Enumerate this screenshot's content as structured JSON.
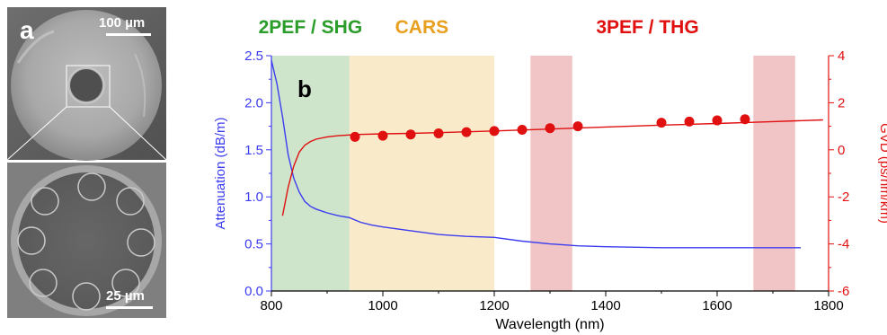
{
  "colors": {
    "attenuation": "#3c3cf0",
    "gvd": "#e01010",
    "green_band": "#bedcb9",
    "orange_band": "#f7e3b8",
    "red_band": "#e9a6a6",
    "green_label": "#2a9d2a",
    "orange_label": "#e8a020",
    "red_label": "#e01010"
  },
  "sem_panel": {
    "top_label": "a",
    "top_scalebar_label": "100 µm",
    "bottom_scalebar_label": "25 µm"
  },
  "chart_data": {
    "type": "line",
    "panel_label": "b",
    "xlabel": "Wavelength (nm)",
    "ylabel_left": "Attenuation (dB/m)",
    "ylabel_right": "GVD (ps/nm/km)",
    "xlim": [
      800,
      1800
    ],
    "ylim_left": [
      0.0,
      2.5
    ],
    "ylim_right": [
      -6,
      4
    ],
    "x_ticks": [
      800,
      1000,
      1200,
      1400,
      1600,
      1800
    ],
    "x_tick_labels": [
      "800",
      "1000",
      "1200",
      "1400",
      "1600",
      "1800"
    ],
    "y_left_ticks": [
      0.0,
      0.5,
      1.0,
      1.5,
      2.0,
      2.5
    ],
    "y_left_tick_labels": [
      "0.0",
      "0.5",
      "1.0",
      "1.5",
      "2.0",
      "2.5"
    ],
    "y_right_ticks": [
      -6,
      -4,
      -2,
      0,
      2,
      4
    ],
    "y_right_tick_labels": [
      "-6",
      "-4",
      "-2",
      "0",
      "2",
      "4"
    ],
    "bands": [
      {
        "label": "2PEF / SHG",
        "x_range": [
          800,
          940
        ],
        "color": "green"
      },
      {
        "label": "CARS",
        "x_range": [
          940,
          1200
        ],
        "color": "orange"
      },
      {
        "label": "3PEF / THG",
        "x_range": [
          1265,
          1340
        ],
        "color": "red"
      },
      {
        "label": "",
        "x_range": [
          1665,
          1740
        ],
        "color": "red"
      }
    ],
    "series": [
      {
        "axis": "left",
        "style": "line",
        "x": [
          800,
          810,
          820,
          830,
          840,
          850,
          860,
          870,
          880,
          890,
          900,
          920,
          940,
          960,
          980,
          1000,
          1050,
          1100,
          1150,
          1200,
          1250,
          1300,
          1350,
          1400,
          1500,
          1600,
          1700,
          1750
        ],
        "y": [
          2.45,
          2.2,
          1.85,
          1.45,
          1.2,
          1.05,
          0.95,
          0.9,
          0.87,
          0.85,
          0.83,
          0.8,
          0.78,
          0.73,
          0.7,
          0.68,
          0.64,
          0.6,
          0.58,
          0.57,
          0.53,
          0.5,
          0.48,
          0.47,
          0.46,
          0.46,
          0.46,
          0.46
        ]
      },
      {
        "axis": "right",
        "style": "line",
        "x": [
          820,
          830,
          840,
          850,
          860,
          870,
          880,
          900,
          920,
          950,
          1000,
          1050,
          1100,
          1200,
          1300,
          1400,
          1500,
          1600,
          1700,
          1790
        ],
        "y": [
          -2.8,
          -1.6,
          -0.7,
          -0.1,
          0.2,
          0.35,
          0.45,
          0.55,
          0.6,
          0.65,
          0.68,
          0.7,
          0.73,
          0.8,
          0.88,
          0.97,
          1.05,
          1.12,
          1.2,
          1.27
        ]
      },
      {
        "axis": "right",
        "style": "points",
        "x": [
          950,
          1000,
          1050,
          1100,
          1150,
          1200,
          1250,
          1300,
          1350,
          1500,
          1550,
          1600,
          1650
        ],
        "y": [
          0.55,
          0.6,
          0.65,
          0.7,
          0.75,
          0.8,
          0.85,
          0.92,
          1.0,
          1.15,
          1.2,
          1.25,
          1.3
        ]
      }
    ]
  }
}
